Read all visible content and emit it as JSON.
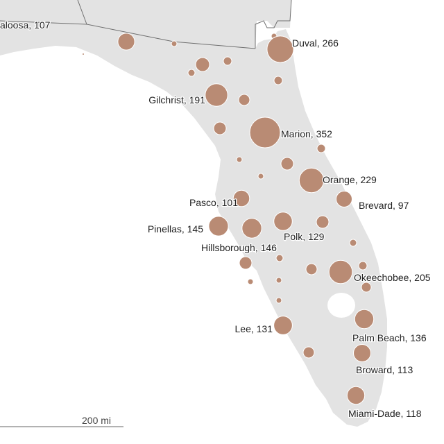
{
  "map": {
    "colors": {
      "land": "#e3e3e3",
      "border": "#6f6f6f",
      "bubble": "#b98b74",
      "label": "#222222",
      "background": "#ffffff"
    },
    "scale_bar": {
      "label": "200 mi"
    },
    "labeled_counties": [
      {
        "name": "Okaloosa",
        "value": 107,
        "display": "aloosa, 107"
      },
      {
        "name": "Duval",
        "value": 266,
        "display": "Duval, 266"
      },
      {
        "name": "Gilchrist",
        "value": 191,
        "display": "Gilchrist, 191"
      },
      {
        "name": "Marion",
        "value": 352,
        "display": "Marion, 352"
      },
      {
        "name": "Orange",
        "value": 229,
        "display": "Orange, 229"
      },
      {
        "name": "Pasco",
        "value": 101,
        "display": "Pasco, 101"
      },
      {
        "name": "Brevard",
        "value": 97,
        "display": "Brevard, 97"
      },
      {
        "name": "Pinellas",
        "value": 145,
        "display": "Pinellas, 145"
      },
      {
        "name": "Polk",
        "value": 129,
        "display": "Polk, 129"
      },
      {
        "name": "Hillsborough",
        "value": 146,
        "display": "Hillsborough, 146"
      },
      {
        "name": "Okeechobee",
        "value": 205,
        "display": "Okeechobee, 205"
      },
      {
        "name": "Lee",
        "value": 131,
        "display": "Lee, 131"
      },
      {
        "name": "Palm Beach",
        "value": 136,
        "display": "Palm Beach, 136"
      },
      {
        "name": "Broward",
        "value": 113,
        "display": "Broward, 113"
      },
      {
        "name": "Miami-Dade",
        "value": 118,
        "display": "Miami-Dade, 118"
      }
    ]
  }
}
